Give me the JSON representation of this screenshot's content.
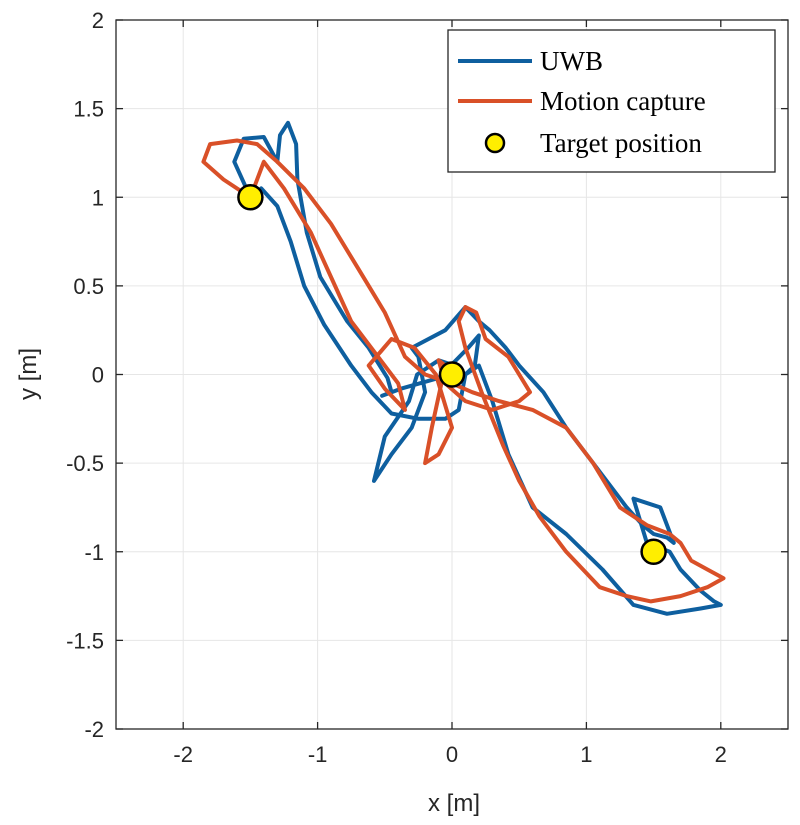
{
  "chart_data": {
    "type": "line",
    "title": "",
    "xlabel": "x [m]",
    "ylabel": "y [m]",
    "xlim": [
      -2.5,
      2.5
    ],
    "ylim": [
      -2,
      2
    ],
    "xticks": [
      -2,
      -1,
      0,
      1,
      2
    ],
    "yticks": [
      -2,
      -1.5,
      -1,
      -0.5,
      0,
      0.5,
      1,
      1.5,
      2
    ],
    "xtick_labels": [
      "-2",
      "-1",
      "0",
      "1",
      "2"
    ],
    "ytick_labels": [
      "-2",
      "-1.5",
      "-1",
      "-0.5",
      "0",
      "0.5",
      "1",
      "1.5",
      "2"
    ],
    "grid": true,
    "legend_position": "top-right",
    "series": [
      {
        "name": "UWB",
        "kind": "line",
        "color": "#0e5f9f",
        "x": [
          -1.5,
          -1.62,
          -1.55,
          -1.4,
          -1.3,
          -1.28,
          -1.22,
          -1.16,
          -1.15,
          -1.08,
          -0.98,
          -0.86,
          -0.78,
          -0.62,
          -0.48,
          -0.45,
          -0.52,
          -0.38,
          -0.1,
          0.12,
          0.2,
          0.17,
          0.1,
          0.02,
          -0.1,
          -0.26,
          -0.32,
          -0.5,
          -0.58,
          -0.45,
          -0.3,
          -0.2,
          -0.25,
          -0.3,
          -0.05,
          0.1,
          0.2,
          0.28,
          0.4,
          0.5,
          0.68,
          0.85,
          1.05,
          1.3,
          1.42,
          1.5,
          1.6,
          1.65,
          1.55,
          1.35,
          1.45,
          1.62,
          1.7,
          1.85,
          1.95,
          2.0,
          1.85,
          1.6,
          1.35,
          1.12,
          0.85,
          0.6,
          0.42,
          0.3,
          0.2,
          0.1,
          0.05,
          -0.05,
          -0.25,
          -0.45,
          -0.6,
          -0.75,
          -0.95,
          -1.1,
          -1.2,
          -1.3,
          -1.42,
          -1.5
        ],
        "y": [
          1.0,
          1.2,
          1.33,
          1.34,
          1.2,
          1.35,
          1.42,
          1.3,
          1.1,
          0.8,
          0.55,
          0.4,
          0.3,
          0.15,
          -0.02,
          -0.1,
          -0.12,
          -0.08,
          -0.02,
          0.15,
          0.22,
          0.05,
          0.0,
          0.05,
          0.08,
          0.0,
          -0.15,
          -0.35,
          -0.6,
          -0.45,
          -0.3,
          -0.1,
          0.1,
          0.15,
          0.25,
          0.38,
          0.3,
          0.25,
          0.15,
          0.05,
          -0.1,
          -0.3,
          -0.5,
          -0.75,
          -0.85,
          -0.9,
          -0.92,
          -0.95,
          -0.75,
          -0.7,
          -0.95,
          -1.0,
          -1.1,
          -1.22,
          -1.28,
          -1.3,
          -1.32,
          -1.35,
          -1.3,
          -1.1,
          -0.9,
          -0.75,
          -0.45,
          -0.15,
          0.05,
          0.0,
          -0.2,
          -0.25,
          -0.25,
          -0.22,
          -0.1,
          0.05,
          0.28,
          0.5,
          0.75,
          0.95,
          1.05,
          1.0
        ]
      },
      {
        "name": "Motion capture",
        "kind": "line",
        "color": "#d95028",
        "x": [
          -1.5,
          -1.7,
          -1.85,
          -1.8,
          -1.6,
          -1.45,
          -1.3,
          -1.1,
          -0.9,
          -0.7,
          -0.5,
          -0.35,
          -0.2,
          0.0,
          0.15,
          0.35,
          0.6,
          0.85,
          1.05,
          1.25,
          1.45,
          1.62,
          1.7,
          1.78,
          1.9,
          2.02,
          1.9,
          1.7,
          1.48,
          1.3,
          1.1,
          0.85,
          0.65,
          0.5,
          0.38,
          0.3,
          0.22,
          0.1,
          0.05,
          0.1,
          0.18,
          0.25,
          0.42,
          0.5,
          0.58,
          0.5,
          0.3,
          0.1,
          -0.05,
          -0.1,
          -0.05,
          -0.15,
          -0.2,
          -0.1,
          0.0,
          -0.12,
          -0.28,
          -0.45,
          -0.62,
          -0.5,
          -0.35,
          -0.4,
          -0.55,
          -0.75,
          -0.9,
          -1.05,
          -1.25,
          -1.4,
          -1.5
        ],
        "y": [
          1.0,
          1.1,
          1.2,
          1.3,
          1.32,
          1.3,
          1.2,
          1.05,
          0.85,
          0.6,
          0.35,
          0.1,
          0.0,
          -0.05,
          -0.1,
          -0.15,
          -0.2,
          -0.3,
          -0.5,
          -0.75,
          -0.85,
          -0.9,
          -0.95,
          -1.05,
          -1.1,
          -1.15,
          -1.2,
          -1.25,
          -1.28,
          -1.25,
          -1.2,
          -1.0,
          -0.8,
          -0.6,
          -0.4,
          -0.25,
          -0.1,
          0.15,
          0.3,
          0.38,
          0.35,
          0.2,
          0.1,
          0.0,
          -0.1,
          -0.15,
          -0.2,
          -0.15,
          -0.05,
          0.08,
          0.05,
          -0.3,
          -0.5,
          -0.45,
          -0.3,
          0.0,
          0.15,
          0.2,
          0.05,
          -0.08,
          -0.2,
          -0.05,
          0.1,
          0.3,
          0.55,
          0.8,
          1.05,
          1.2,
          1.0
        ]
      },
      {
        "name": "Target position",
        "kind": "scatter",
        "color": "#ffee00",
        "points": [
          {
            "x": -1.5,
            "y": 1.0
          },
          {
            "x": 0.0,
            "y": 0.0
          },
          {
            "x": 1.5,
            "y": -1.0
          }
        ]
      }
    ]
  }
}
